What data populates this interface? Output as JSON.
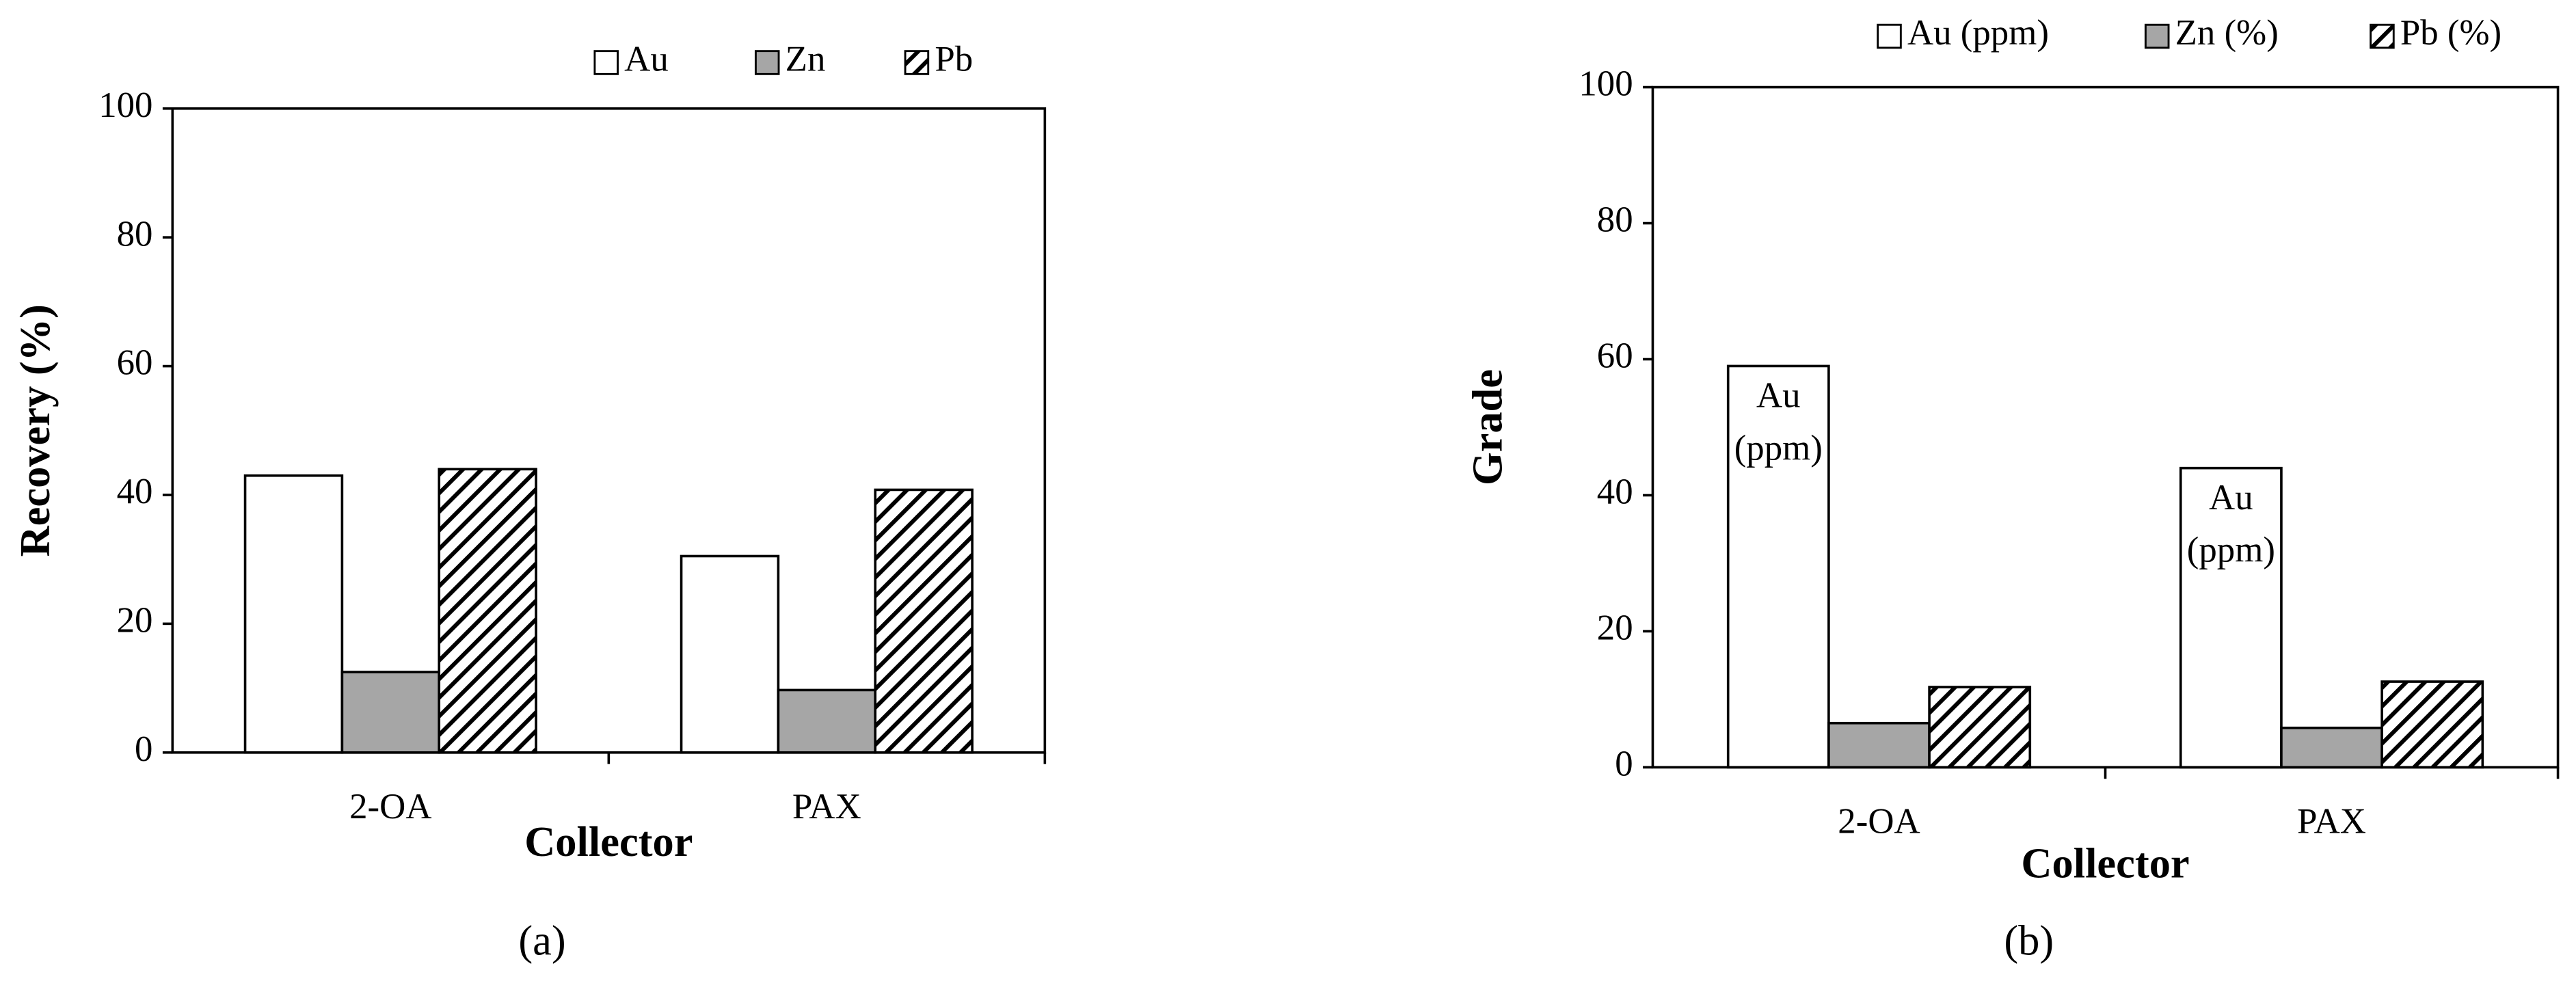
{
  "chart_data": [
    {
      "type": "bar",
      "panel_label": "(a)",
      "x_label": "Collector",
      "y_label": "Recovery (%)",
      "categories": [
        "2-OA",
        "PAX"
      ],
      "series": [
        {
          "name": "Au",
          "color": "#ffffff",
          "pattern": "solid",
          "values": [
            43,
            30.5
          ]
        },
        {
          "name": "Zn",
          "color": "#a6a6a6",
          "pattern": "solid",
          "values": [
            12.5,
            9.7
          ]
        },
        {
          "name": "Pb",
          "color": "#ffffff",
          "pattern": "hatch",
          "values": [
            44,
            40.8
          ]
        }
      ],
      "ylim": [
        0,
        100
      ],
      "yticks": [
        0,
        20,
        40,
        60,
        80,
        100
      ],
      "grid": false,
      "legend": "top-right"
    },
    {
      "type": "bar",
      "panel_label": "(b)",
      "x_label": "Collector",
      "y_label": "Grade",
      "categories": [
        "2-OA",
        "PAX"
      ],
      "series": [
        {
          "name": "Au (ppm)",
          "color": "#ffffff",
          "pattern": "solid",
          "values": [
            59,
            44
          ],
          "annotations": [
            [
              "Au",
              "(ppm)"
            ],
            [
              "Au",
              "(ppm)"
            ]
          ]
        },
        {
          "name": "Zn (%)",
          "color": "#a6a6a6",
          "pattern": "solid",
          "values": [
            6.5,
            5.8
          ]
        },
        {
          "name": "Pb (%)",
          "color": "#ffffff",
          "pattern": "hatch",
          "values": [
            11.8,
            12.6
          ]
        }
      ],
      "ylim": [
        0,
        100
      ],
      "yticks": [
        0,
        20,
        40,
        60,
        80,
        100
      ],
      "grid": false,
      "legend": "top-right"
    }
  ]
}
